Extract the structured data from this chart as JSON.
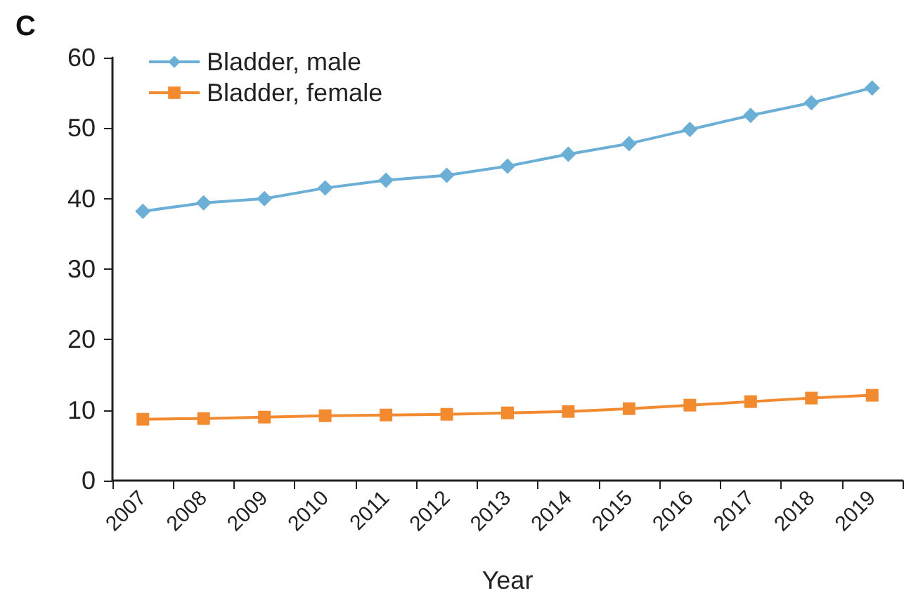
{
  "chart_data": {
    "type": "line",
    "title": "C",
    "xlabel": "Year",
    "categories": [
      "2007",
      "2008",
      "2009",
      "2010",
      "2011",
      "2012",
      "2013",
      "2014",
      "2015",
      "2016",
      "2017",
      "2018",
      "2019"
    ],
    "series": [
      {
        "name": "Bladder, male",
        "color": "#6baed6",
        "marker": "diamond",
        "values": [
          38.2,
          39.4,
          40.0,
          41.5,
          42.6,
          43.3,
          44.6,
          46.3,
          47.8,
          49.8,
          51.8,
          53.6,
          55.7
        ]
      },
      {
        "name": "Bladder, female",
        "color": "#f28a30",
        "marker": "square",
        "values": [
          8.7,
          8.8,
          9.0,
          9.2,
          9.3,
          9.4,
          9.6,
          9.8,
          10.2,
          10.7,
          11.2,
          11.7,
          12.1
        ]
      }
    ],
    "ylim": [
      0,
      60
    ],
    "yticks": [
      0,
      10,
      20,
      30,
      40,
      50,
      60
    ],
    "grid": false,
    "legend": "top left"
  }
}
